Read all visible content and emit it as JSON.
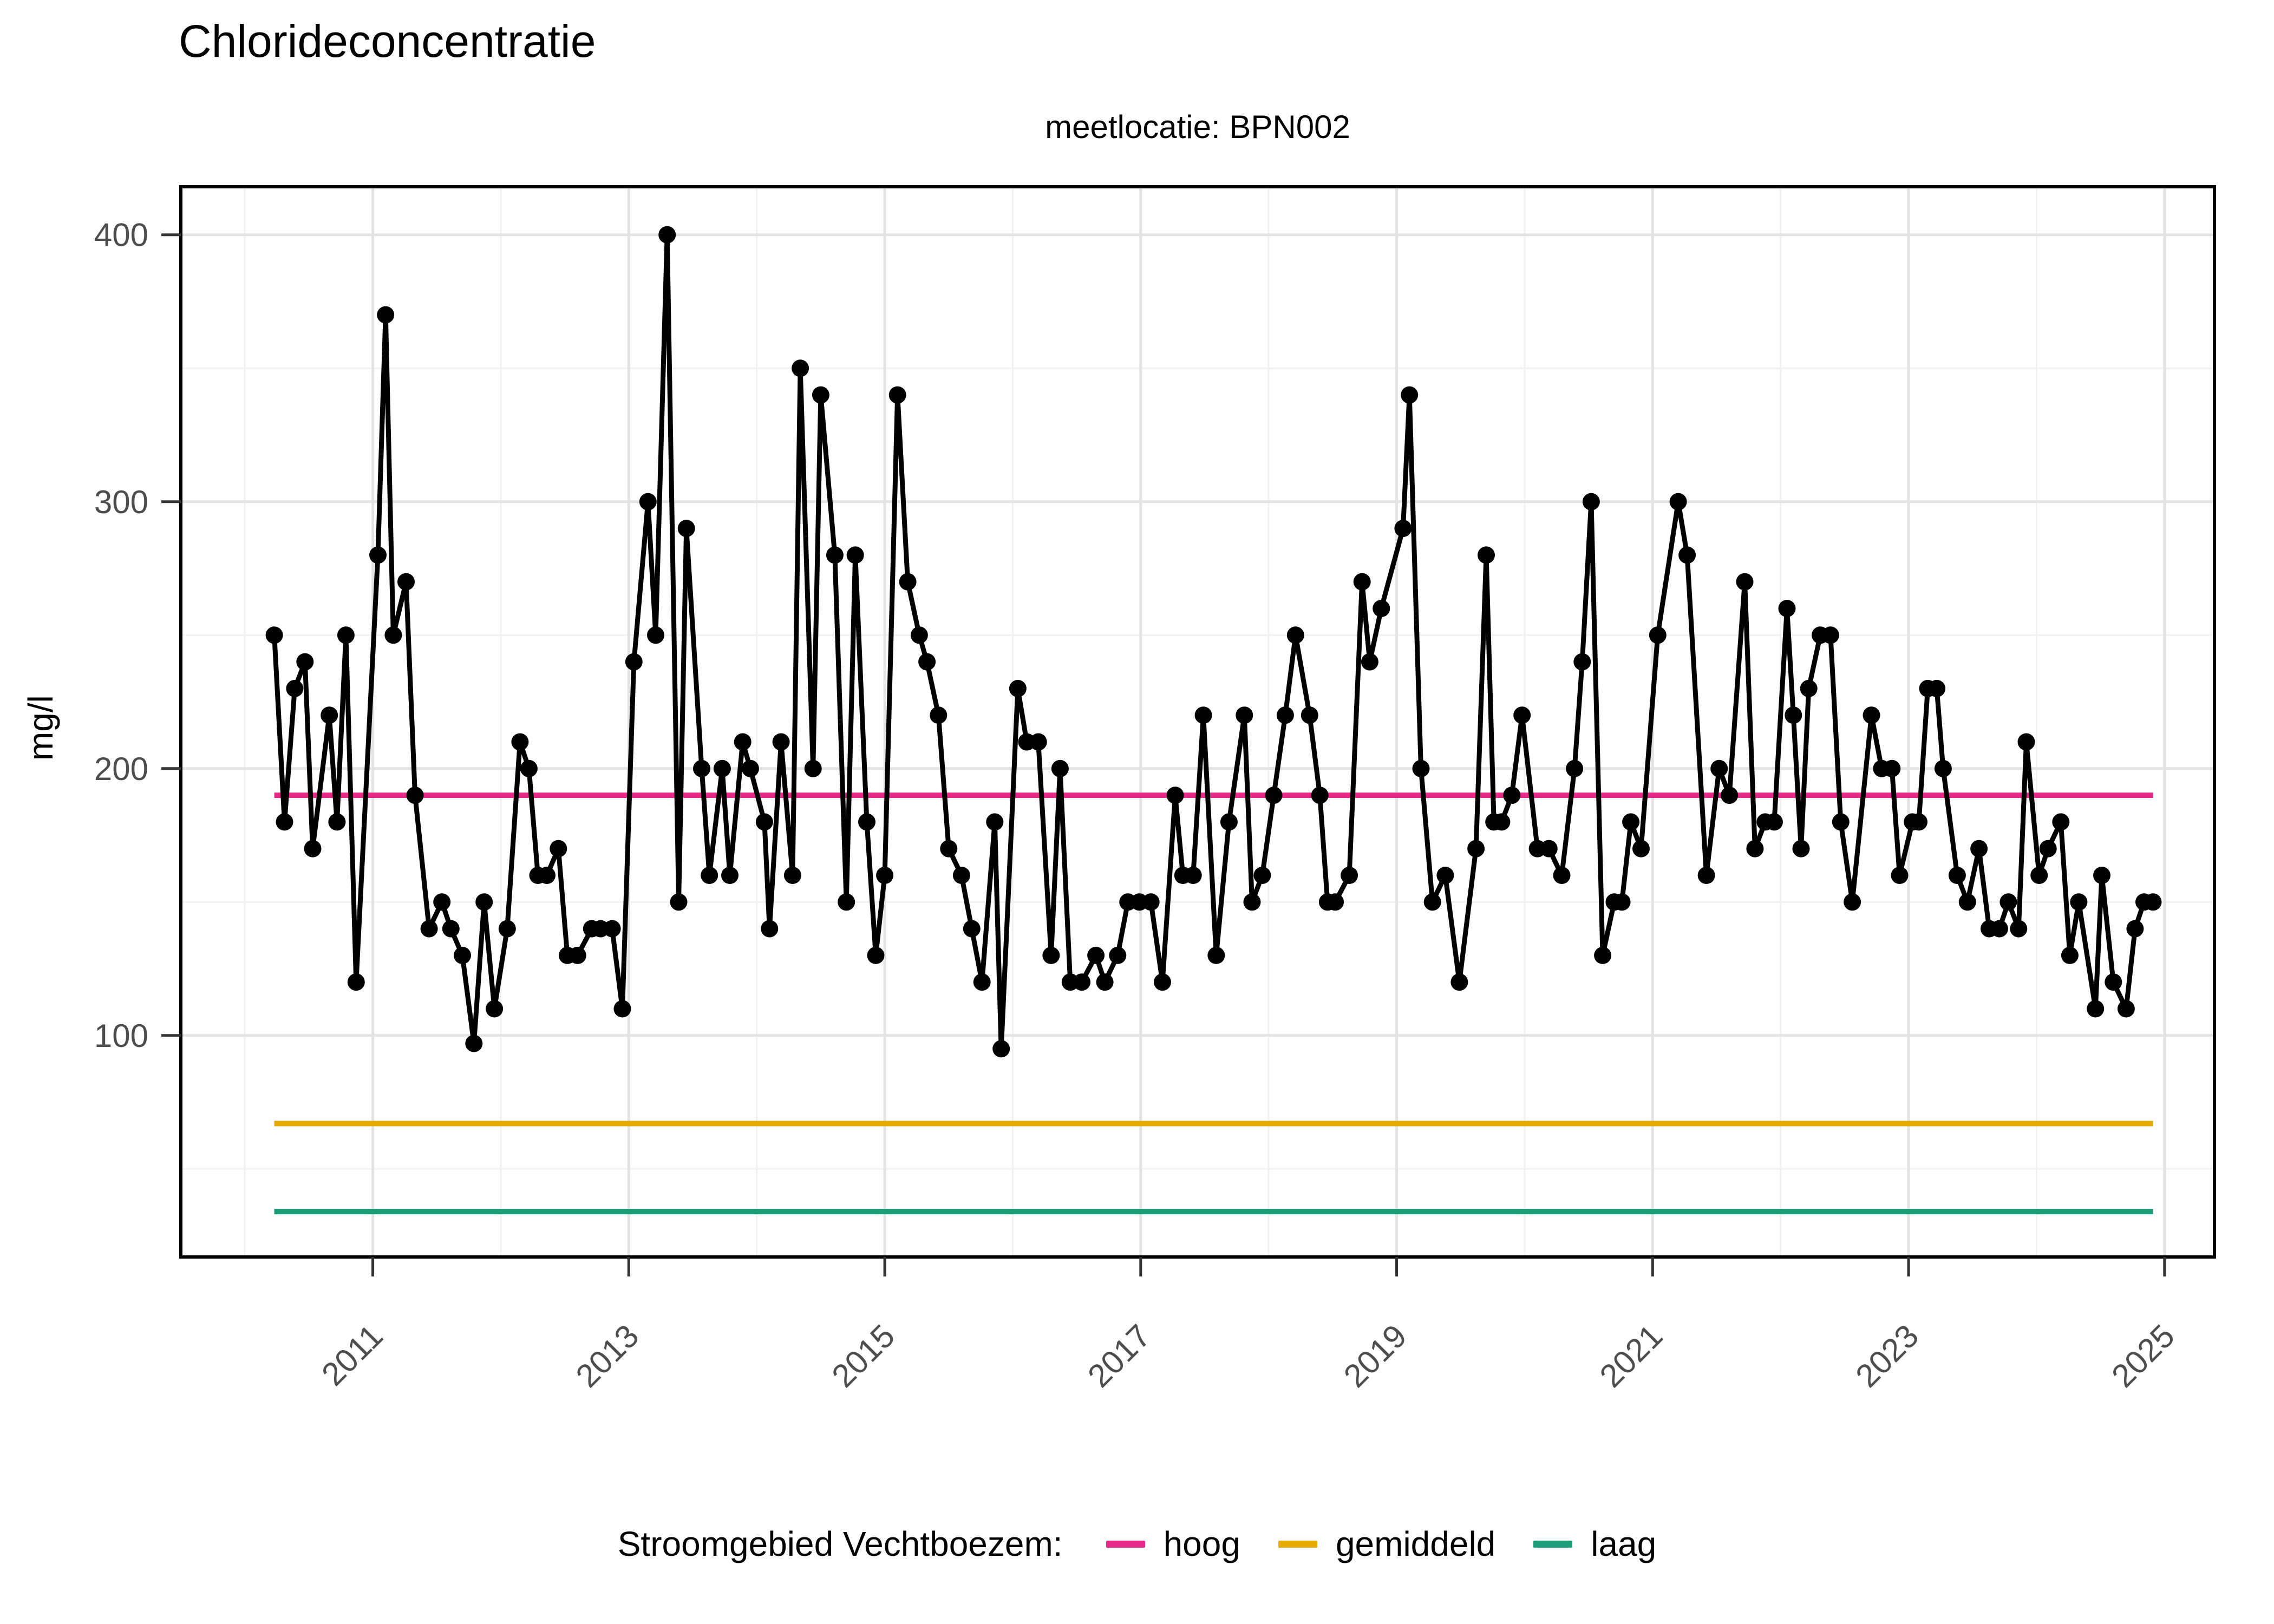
{
  "title": "Chlorideconcentratie",
  "subtitle": "meetlocatie: BPN002",
  "y_axis": {
    "label": "mg/l",
    "ticks": [
      100,
      200,
      300,
      400
    ],
    "minor_ticks": [
      50,
      150,
      250,
      350
    ]
  },
  "x_axis": {
    "ticks": [
      2011,
      2013,
      2015,
      2017,
      2019,
      2021,
      2023,
      2025
    ],
    "minor_ticks": [
      2010,
      2012,
      2014,
      2016,
      2018,
      2020,
      2022,
      2024
    ]
  },
  "legend": {
    "title": "Stroomgebied Vechtboezem:",
    "items": [
      {
        "label": "hoog",
        "color": "#e7298a"
      },
      {
        "label": "gemiddeld",
        "color": "#e6ab02"
      },
      {
        "label": "laag",
        "color": "#1b9e77"
      }
    ]
  },
  "colors": {
    "series": "#000000",
    "grid_major": "#e3e3e3",
    "grid_minor": "#f1f1f1",
    "axis_text": "#4d4d4d",
    "frame": "#000000"
  },
  "chart_data": {
    "type": "line",
    "title": "Chlorideconcentratie",
    "subtitle": "meetlocatie: BPN002",
    "xlabel": "",
    "ylabel": "mg/l",
    "xlim": [
      2009.5,
      2025.39
    ],
    "ylim": [
      17,
      418
    ],
    "grid": true,
    "legend_position": "bottom",
    "series": [
      {
        "name": "chloride (mg/l)",
        "color": "#000000",
        "x": [
          2010.23,
          2010.31,
          2010.39,
          2010.47,
          2010.53,
          2010.66,
          2010.72,
          2010.79,
          2010.87,
          2011.04,
          2011.1,
          2011.16,
          2011.26,
          2011.33,
          2011.44,
          2011.54,
          2011.61,
          2011.7,
          2011.79,
          2011.87,
          2011.95,
          2012.05,
          2012.15,
          2012.22,
          2012.29,
          2012.36,
          2012.45,
          2012.52,
          2012.6,
          2012.71,
          2012.78,
          2012.87,
          2012.95,
          2013.04,
          2013.15,
          2013.21,
          2013.3,
          2013.39,
          2013.45,
          2013.57,
          2013.63,
          2013.73,
          2013.79,
          2013.89,
          2013.95,
          2014.06,
          2014.1,
          2014.19,
          2014.28,
          2014.34,
          2014.44,
          2014.5,
          2014.61,
          2014.7,
          2014.77,
          2014.86,
          2014.93,
          2015.0,
          2015.1,
          2015.18,
          2015.27,
          2015.33,
          2015.42,
          2015.5,
          2015.6,
          2015.68,
          2015.76,
          2015.86,
          2015.91,
          2016.04,
          2016.11,
          2016.2,
          2016.3,
          2016.37,
          2016.45,
          2016.54,
          2016.65,
          2016.72,
          2016.82,
          2016.9,
          2016.99,
          2017.08,
          2017.17,
          2017.27,
          2017.33,
          2017.41,
          2017.49,
          2017.59,
          2017.69,
          2017.81,
          2017.87,
          2017.95,
          2018.04,
          2018.13,
          2018.21,
          2018.32,
          2018.4,
          2018.46,
          2018.52,
          2018.63,
          2018.73,
          2018.79,
          2018.88,
          2019.05,
          2019.1,
          2019.19,
          2019.28,
          2019.38,
          2019.49,
          2019.62,
          2019.7,
          2019.76,
          2019.82,
          2019.9,
          2019.98,
          2020.1,
          2020.19,
          2020.29,
          2020.39,
          2020.45,
          2020.52,
          2020.61,
          2020.7,
          2020.76,
          2020.83,
          2020.91,
          2021.04,
          2021.2,
          2021.27,
          2021.42,
          2021.52,
          2021.6,
          2021.72,
          2021.8,
          2021.88,
          2021.95,
          2022.05,
          2022.1,
          2022.16,
          2022.22,
          2022.31,
          2022.39,
          2022.47,
          2022.56,
          2022.71,
          2022.79,
          2022.87,
          2022.93,
          2023.03,
          2023.08,
          2023.15,
          2023.22,
          2023.27,
          2023.38,
          2023.46,
          2023.55,
          2023.63,
          2023.71,
          2023.78,
          2023.86,
          2023.92,
          2024.02,
          2024.09,
          2024.19,
          2024.26,
          2024.33,
          2024.46,
          2024.51,
          2024.6,
          2024.7,
          2024.77,
          2024.84,
          2024.91
        ],
        "y": [
          250,
          180,
          230,
          240,
          170,
          220,
          180,
          250,
          120,
          280,
          370,
          250,
          270,
          190,
          140,
          150,
          140,
          130,
          97,
          150,
          110,
          140,
          210,
          200,
          160,
          160,
          170,
          130,
          130,
          140,
          140,
          140,
          110,
          240,
          300,
          250,
          400,
          150,
          290,
          200,
          160,
          200,
          160,
          210,
          200,
          180,
          140,
          210,
          160,
          350,
          200,
          340,
          280,
          150,
          280,
          180,
          130,
          160,
          340,
          270,
          250,
          240,
          220,
          170,
          160,
          140,
          120,
          180,
          95,
          230,
          210,
          210,
          130,
          200,
          120,
          120,
          130,
          120,
          130,
          150,
          150,
          150,
          120,
          190,
          160,
          160,
          220,
          130,
          180,
          220,
          150,
          160,
          190,
          220,
          250,
          220,
          190,
          150,
          150,
          160,
          270,
          240,
          260,
          290,
          340,
          200,
          150,
          160,
          120,
          170,
          280,
          180,
          180,
          190,
          220,
          170,
          170,
          160,
          200,
          240,
          300,
          130,
          150,
          150,
          180,
          170,
          250,
          300,
          280,
          160,
          200,
          190,
          270,
          170,
          180,
          180,
          260,
          220,
          170,
          230,
          250,
          250,
          180,
          150,
          220,
          200,
          200,
          160,
          180,
          180,
          230,
          230,
          200,
          160,
          150,
          170,
          140,
          140,
          150,
          140,
          210,
          160,
          170,
          180,
          130,
          150,
          110,
          160,
          120,
          110,
          140,
          150,
          150
        ]
      }
    ],
    "reference_lines": [
      {
        "name": "hoog",
        "value": 190,
        "color": "#e7298a"
      },
      {
        "name": "gemiddeld",
        "value": 67,
        "color": "#e6ab02"
      },
      {
        "name": "laag",
        "value": 34,
        "color": "#1b9e77"
      }
    ]
  }
}
